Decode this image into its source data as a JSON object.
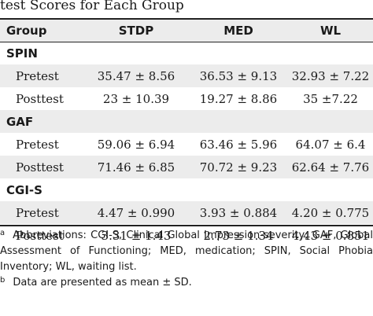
{
  "title": "test Scores for Each Group",
  "columns": [
    "Group",
    "STDP",
    "MED",
    "WL"
  ],
  "groups": [
    {
      "name": "SPIN",
      "rows": [
        {
          "label": "Pretest",
          "values": [
            "35.47 ± 8.56",
            "36.53 ± 9.13",
            "32.93 ± 7.22"
          ]
        },
        {
          "label": "Posttest",
          "values": [
            "23 ± 10.39",
            "19.27 ± 8.86",
            "35 ±7.22"
          ]
        }
      ]
    },
    {
      "name": "GAF",
      "rows": [
        {
          "label": "Pretest",
          "values": [
            "59.06 ± 6.94",
            "63.46 ± 5.96",
            "64.07 ± 6.4"
          ]
        },
        {
          "label": "Posttest",
          "values": [
            "71.46 ± 6.85",
            "70.72 ± 9.23",
            "62.64 ± 7.76"
          ]
        }
      ]
    },
    {
      "name": "CGI-S",
      "rows": [
        {
          "label": "Pretest",
          "values": [
            "4.47 ± 0.990",
            "3.93 ± 0.884",
            "4.20 ± 0.775"
          ]
        },
        {
          "label": "Posttest",
          "values": [
            "3.31 ± 1.43",
            "2.73 ± 1.34",
            "4.43 ± 0.851"
          ]
        }
      ]
    }
  ],
  "footnotes": [
    {
      "mark": "a",
      "text": "Abbreviations: CGI-S, Clinical Global Impression-severity; GAF, Global Assessment of Functioning; MED, medication; SPIN, Social Phobia Inventory; WL, waiting list."
    },
    {
      "mark": "b",
      "text": "Data are presented as mean ± SD."
    }
  ]
}
